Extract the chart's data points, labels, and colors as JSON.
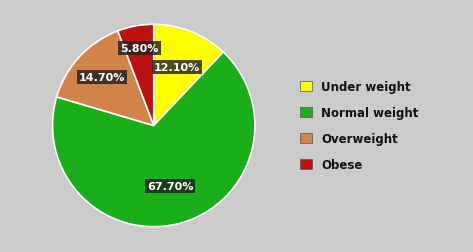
{
  "labels": [
    "Under weight",
    "Normal weight",
    "Overweight",
    "Obese"
  ],
  "values": [
    12.1,
    67.7,
    14.7,
    5.8
  ],
  "colors": [
    "#FFFF00",
    "#1AAF1A",
    "#D2834A",
    "#BB1111"
  ],
  "pct_labels": [
    "12.10%",
    "67.70%",
    "14.70%",
    "5.80%"
  ],
  "background_color": "#CBCBCB",
  "startangle": 90,
  "legend_fontsize": 8.5,
  "pct_fontsize": 8.0,
  "pct_label_r": [
    0.62,
    0.62,
    0.7,
    0.78
  ]
}
